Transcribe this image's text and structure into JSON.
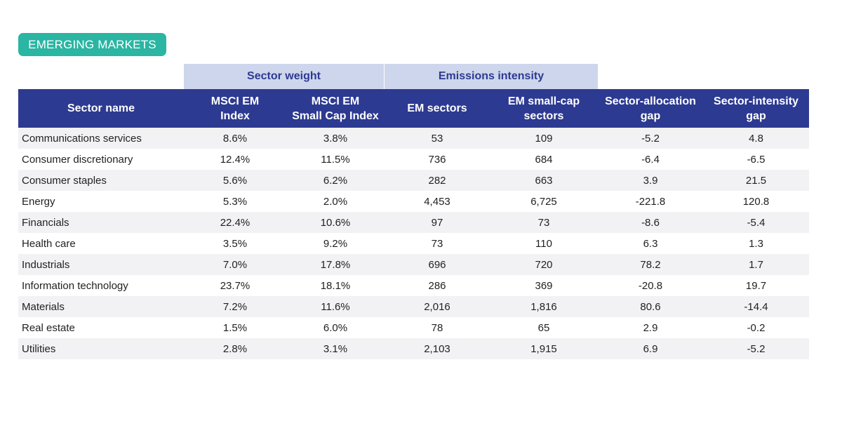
{
  "badge": "EMERGING MARKETS",
  "group_headers": {
    "sector_weight": "Sector weight",
    "emissions_intensity": "Emissions intensity"
  },
  "columns": [
    "Sector name",
    "MSCI EM\nIndex",
    "MSCI EM\nSmall Cap Index",
    "EM sectors",
    "EM small-cap\nsectors",
    "Sector-allocation\ngap",
    "Sector-intensity\ngap"
  ],
  "rows": [
    [
      "Communications services",
      "8.6%",
      "3.8%",
      "53",
      "109",
      "-5.2",
      "4.8"
    ],
    [
      "Consumer discretionary",
      "12.4%",
      "11.5%",
      "736",
      "684",
      "-6.4",
      "-6.5"
    ],
    [
      "Consumer staples",
      "5.6%",
      "6.2%",
      "282",
      "663",
      "3.9",
      "21.5"
    ],
    [
      "Energy",
      "5.3%",
      "2.0%",
      "4,453",
      "6,725",
      "-221.8",
      "120.8"
    ],
    [
      "Financials",
      "22.4%",
      "10.6%",
      "97",
      "73",
      "-8.6",
      "-5.4"
    ],
    [
      "Health care",
      "3.5%",
      "9.2%",
      "73",
      "110",
      "6.3",
      "1.3"
    ],
    [
      "Industrials",
      "7.0%",
      "17.8%",
      "696",
      "720",
      "78.2",
      "1.7"
    ],
    [
      "Information technology",
      "23.7%",
      "18.1%",
      "286",
      "369",
      "-20.8",
      "19.7"
    ],
    [
      "Materials",
      "7.2%",
      "11.6%",
      "2,016",
      "1,816",
      "80.6",
      "-14.4"
    ],
    [
      "Real estate",
      "1.5%",
      "6.0%",
      "78",
      "65",
      "2.9",
      "-0.2"
    ],
    [
      "Utilities",
      "2.8%",
      "3.1%",
      "2,103",
      "1,915",
      "6.9",
      "-5.2"
    ]
  ],
  "colors": {
    "badge": "#2bb5a3",
    "header": "#2d3a91",
    "group_header": "#cdd6ec",
    "row_stripe": "#f2f2f4"
  },
  "chart_data": {
    "type": "table",
    "title": "EMERGING MARKETS",
    "column_groups": [
      {
        "name": "Sector weight",
        "columns": [
          "MSCI EM Index",
          "MSCI EM Small Cap Index"
        ]
      },
      {
        "name": "Emissions intensity",
        "columns": [
          "EM sectors",
          "EM small-cap sectors"
        ]
      }
    ],
    "columns": [
      "Sector name",
      "MSCI EM Index",
      "MSCI EM Small Cap Index",
      "EM sectors",
      "EM small-cap sectors",
      "Sector-allocation gap",
      "Sector-intensity gap"
    ],
    "rows": [
      {
        "sector": "Communications services",
        "msci_em_index_weight": 8.6,
        "msci_em_small_cap_weight": 3.8,
        "em_sectors_intensity": 53,
        "em_small_cap_intensity": 109,
        "sector_allocation_gap": -5.2,
        "sector_intensity_gap": 4.8
      },
      {
        "sector": "Consumer discretionary",
        "msci_em_index_weight": 12.4,
        "msci_em_small_cap_weight": 11.5,
        "em_sectors_intensity": 736,
        "em_small_cap_intensity": 684,
        "sector_allocation_gap": -6.4,
        "sector_intensity_gap": -6.5
      },
      {
        "sector": "Consumer staples",
        "msci_em_index_weight": 5.6,
        "msci_em_small_cap_weight": 6.2,
        "em_sectors_intensity": 282,
        "em_small_cap_intensity": 663,
        "sector_allocation_gap": 3.9,
        "sector_intensity_gap": 21.5
      },
      {
        "sector": "Energy",
        "msci_em_index_weight": 5.3,
        "msci_em_small_cap_weight": 2.0,
        "em_sectors_intensity": 4453,
        "em_small_cap_intensity": 6725,
        "sector_allocation_gap": -221.8,
        "sector_intensity_gap": 120.8
      },
      {
        "sector": "Financials",
        "msci_em_index_weight": 22.4,
        "msci_em_small_cap_weight": 10.6,
        "em_sectors_intensity": 97,
        "em_small_cap_intensity": 73,
        "sector_allocation_gap": -8.6,
        "sector_intensity_gap": -5.4
      },
      {
        "sector": "Health care",
        "msci_em_index_weight": 3.5,
        "msci_em_small_cap_weight": 9.2,
        "em_sectors_intensity": 73,
        "em_small_cap_intensity": 110,
        "sector_allocation_gap": 6.3,
        "sector_intensity_gap": 1.3
      },
      {
        "sector": "Industrials",
        "msci_em_index_weight": 7.0,
        "msci_em_small_cap_weight": 17.8,
        "em_sectors_intensity": 696,
        "em_small_cap_intensity": 720,
        "sector_allocation_gap": 78.2,
        "sector_intensity_gap": 1.7
      },
      {
        "sector": "Information technology",
        "msci_em_index_weight": 23.7,
        "msci_em_small_cap_weight": 18.1,
        "em_sectors_intensity": 286,
        "em_small_cap_intensity": 369,
        "sector_allocation_gap": -20.8,
        "sector_intensity_gap": 19.7
      },
      {
        "sector": "Materials",
        "msci_em_index_weight": 7.2,
        "msci_em_small_cap_weight": 11.6,
        "em_sectors_intensity": 2016,
        "em_small_cap_intensity": 1816,
        "sector_allocation_gap": 80.6,
        "sector_intensity_gap": -14.4
      },
      {
        "sector": "Real estate",
        "msci_em_index_weight": 1.5,
        "msci_em_small_cap_weight": 6.0,
        "em_sectors_intensity": 78,
        "em_small_cap_intensity": 65,
        "sector_allocation_gap": 2.9,
        "sector_intensity_gap": -0.2
      },
      {
        "sector": "Utilities",
        "msci_em_index_weight": 2.8,
        "msci_em_small_cap_weight": 3.1,
        "em_sectors_intensity": 2103,
        "em_small_cap_intensity": 1915,
        "sector_allocation_gap": 6.9,
        "sector_intensity_gap": -5.2
      }
    ]
  }
}
